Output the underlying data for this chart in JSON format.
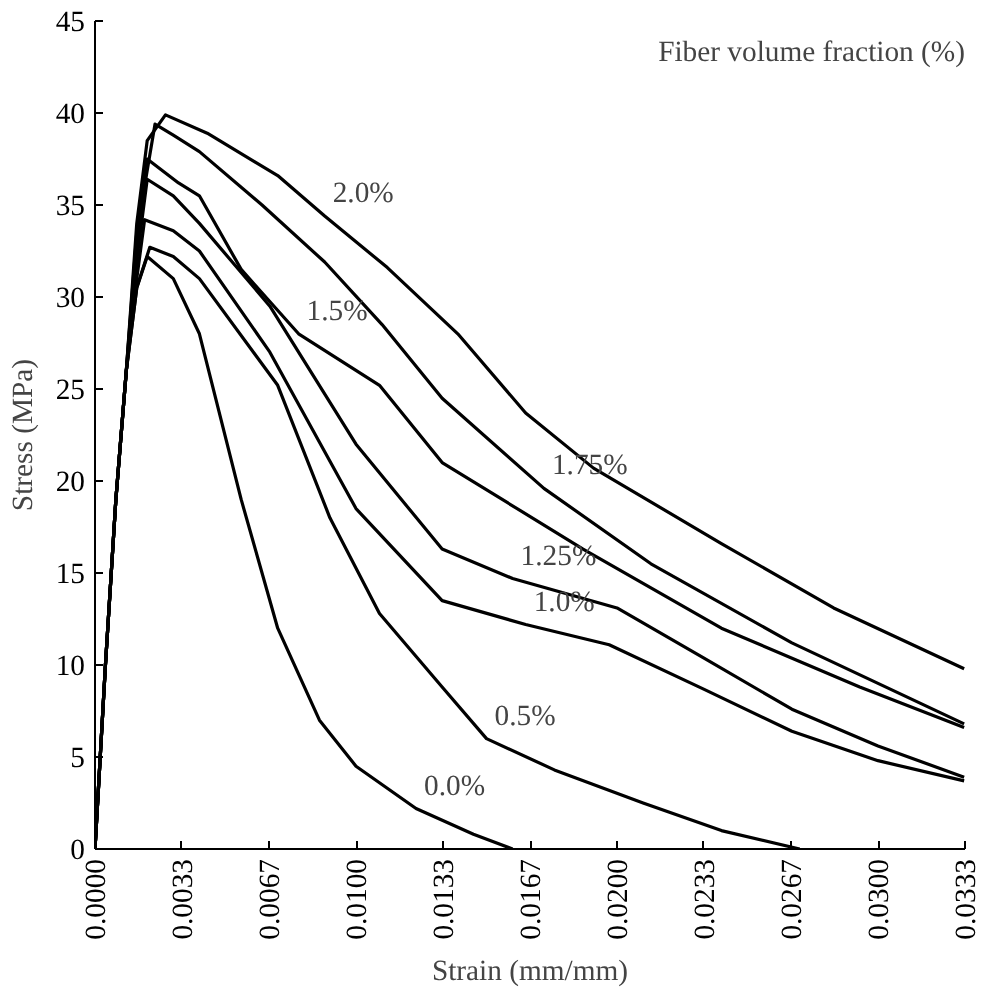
{
  "chart_data": {
    "type": "line",
    "xlabel": "Strain (mm/mm)",
    "ylabel": "Stress (MPa)",
    "legend_title": "Fiber volume fraction (%)",
    "xlim": [
      0,
      0.033333
    ],
    "ylim": [
      0,
      45
    ],
    "xticks": [
      {
        "value": 0,
        "label": "0.0000"
      },
      {
        "value": 0.003333,
        "label": "0.0033"
      },
      {
        "value": 0.006667,
        "label": "0.0067"
      },
      {
        "value": 0.01,
        "label": "0.0100"
      },
      {
        "value": 0.013333,
        "label": "0.0133"
      },
      {
        "value": 0.016667,
        "label": "0.0167"
      },
      {
        "value": 0.02,
        "label": "0.0200"
      },
      {
        "value": 0.023333,
        "label": "0.0233"
      },
      {
        "value": 0.026667,
        "label": "0.0267"
      },
      {
        "value": 0.03,
        "label": "0.0300"
      },
      {
        "value": 0.033333,
        "label": "0.0333"
      }
    ],
    "yticks": [
      0,
      5,
      10,
      15,
      20,
      25,
      30,
      35,
      40,
      45
    ],
    "grid": false,
    "marker": "none",
    "line_style": "solid",
    "series": [
      {
        "color": "#000000",
        "x": [
          0,
          0.0004,
          0.0008,
          0.0012,
          0.0016,
          0.002,
          0.003,
          0.004,
          0.0056,
          0.007,
          0.0086,
          0.01,
          0.0123,
          0.0145,
          0.016
        ],
        "values": [
          0,
          10,
          19,
          26,
          30.5,
          32.2,
          31,
          28,
          19,
          12,
          7,
          4.5,
          2.2,
          0.8,
          0
        ]
      },
      {
        "color": "#000000",
        "x": [
          0,
          0.0004,
          0.0008,
          0.0012,
          0.0016,
          0.0021,
          0.003,
          0.004,
          0.007,
          0.009,
          0.0109,
          0.0133,
          0.015,
          0.0176,
          0.021,
          0.024,
          0.027
        ],
        "values": [
          0,
          10,
          19,
          26,
          30.5,
          32.7,
          32.2,
          31,
          25.2,
          18,
          12.8,
          8.8,
          6,
          4.3,
          2.5,
          1,
          0
        ]
      },
      {
        "color": "#000000",
        "x": [
          0,
          0.0004,
          0.0008,
          0.0012,
          0.0016,
          0.0019,
          0.003,
          0.004,
          0.0067,
          0.01,
          0.0133,
          0.0165,
          0.0197,
          0.0233,
          0.0267,
          0.03,
          0.0333
        ],
        "values": [
          0,
          10,
          19,
          26,
          31,
          34.2,
          33.6,
          32.5,
          27,
          18.5,
          13.5,
          12.2,
          11.1,
          8.7,
          6.4,
          4.8,
          3.7
        ]
      },
      {
        "color": "#000000",
        "x": [
          0,
          0.0004,
          0.0008,
          0.0012,
          0.0016,
          0.002,
          0.003,
          0.004,
          0.0067,
          0.01,
          0.0133,
          0.016,
          0.02,
          0.0233,
          0.0267,
          0.03,
          0.0333
        ],
        "values": [
          0,
          10,
          19,
          26,
          32,
          36.4,
          35.5,
          34,
          29.5,
          22,
          16.3,
          14.7,
          13.1,
          10.4,
          7.6,
          5.6,
          3.9
        ]
      },
      {
        "color": "#000000",
        "x": [
          0,
          0.0004,
          0.0008,
          0.0012,
          0.0016,
          0.002,
          0.0032,
          0.004,
          0.0056,
          0.0078,
          0.0109,
          0.0133,
          0.0187,
          0.024,
          0.0293,
          0.0333
        ],
        "values": [
          0,
          10,
          19,
          26,
          33,
          37.5,
          36.2,
          35.5,
          31.5,
          28,
          25.2,
          21,
          16.3,
          12,
          8.8,
          6.6
        ]
      },
      {
        "color": "#000000",
        "x": [
          0,
          0.0004,
          0.0008,
          0.0012,
          0.0016,
          0.0023,
          0.003,
          0.004,
          0.0064,
          0.0088,
          0.011,
          0.0133,
          0.0172,
          0.0213,
          0.0267,
          0.03,
          0.0333
        ],
        "values": [
          0,
          10,
          19,
          26,
          33.5,
          39.4,
          38.8,
          37.9,
          35,
          31.9,
          28.5,
          24.5,
          19.6,
          15.5,
          11.2,
          9,
          6.8
        ]
      },
      {
        "color": "#000000",
        "x": [
          0,
          0.0004,
          0.0008,
          0.0012,
          0.0016,
          0.002,
          0.0027,
          0.0043,
          0.007,
          0.0088,
          0.0112,
          0.0139,
          0.0165,
          0.0191,
          0.024,
          0.0283,
          0.0333
        ],
        "values": [
          0,
          10,
          19,
          26,
          34,
          38.5,
          39.9,
          38.9,
          36.6,
          34.4,
          31.6,
          28,
          23.7,
          20.7,
          16.6,
          13.1,
          9.8
        ]
      }
    ],
    "annotations": [
      {
        "text": "0.0%",
        "x": 0.0123,
        "y": 2.2
      },
      {
        "text": "0.5%",
        "x": 0.015,
        "y": 6
      },
      {
        "text": "1.0%",
        "x": 0.0165,
        "y": 12.2
      },
      {
        "text": "1.25%",
        "x": 0.016,
        "y": 14.7
      },
      {
        "text": "1.5%",
        "x": 0.0078,
        "y": 28
      },
      {
        "text": "1.75%",
        "x": 0.0172,
        "y": 19.6
      },
      {
        "text": "2.0%",
        "x": 0.0088,
        "y": 34.4
      }
    ]
  }
}
